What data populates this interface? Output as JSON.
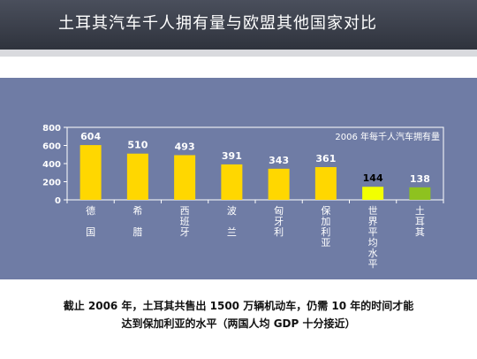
{
  "page": {
    "title": "土耳其汽车千人拥有量与欧盟其他国家对比",
    "caption_lines": [
      "截止 2006 年，土耳其共售出 1500 万辆机动车，仍需 10 年的时间才能",
      "达到保加利亚的水平（两国人均 GDP 十分接近）"
    ]
  },
  "colors": {
    "bar": "#ffd700",
    "highlight": "#f2ff00",
    "turkey": "#8ec21f",
    "panel": "#6f7ca5"
  },
  "chart_data": {
    "type": "bar",
    "legend_text": "2006 年每千人汽车拥有量",
    "categories": [
      "德国",
      "希腊",
      "西班牙",
      "波兰",
      "匈牙利",
      "保加利亚",
      "世界平均水平",
      "土耳其"
    ],
    "category_label_lines": [
      [
        "德",
        "",
        "国"
      ],
      [
        "希",
        "",
        "腊"
      ],
      [
        "西",
        "班",
        "牙"
      ],
      [
        "波",
        "",
        "兰"
      ],
      [
        "匈",
        "牙",
        "利"
      ],
      [
        "保",
        "加",
        "利",
        "亚"
      ],
      [
        "世",
        "界",
        "平",
        "均",
        "水",
        "平"
      ],
      [
        "土",
        "耳",
        "其"
      ]
    ],
    "values": [
      604,
      510,
      493,
      391,
      343,
      361,
      144,
      138
    ],
    "value_labels": [
      "604",
      "510",
      "493",
      "391",
      "343",
      "361",
      "144",
      "138"
    ],
    "bar_colors": [
      "#ffd700",
      "#ffd700",
      "#ffd700",
      "#ffd700",
      "#ffd700",
      "#ffd700",
      "#f2ff00",
      "#8ec21f"
    ],
    "value_label_colors": [
      "#ffffff",
      "#ffffff",
      "#ffffff",
      "#ffffff",
      "#ffffff",
      "#ffffff",
      "#000000",
      "#ffffff"
    ],
    "ylim": [
      0,
      800
    ],
    "yticks": [
      "0",
      "200",
      "400",
      "600",
      "800"
    ],
    "ytick_values": [
      0,
      200,
      400,
      600,
      800
    ],
    "grid": false
  }
}
